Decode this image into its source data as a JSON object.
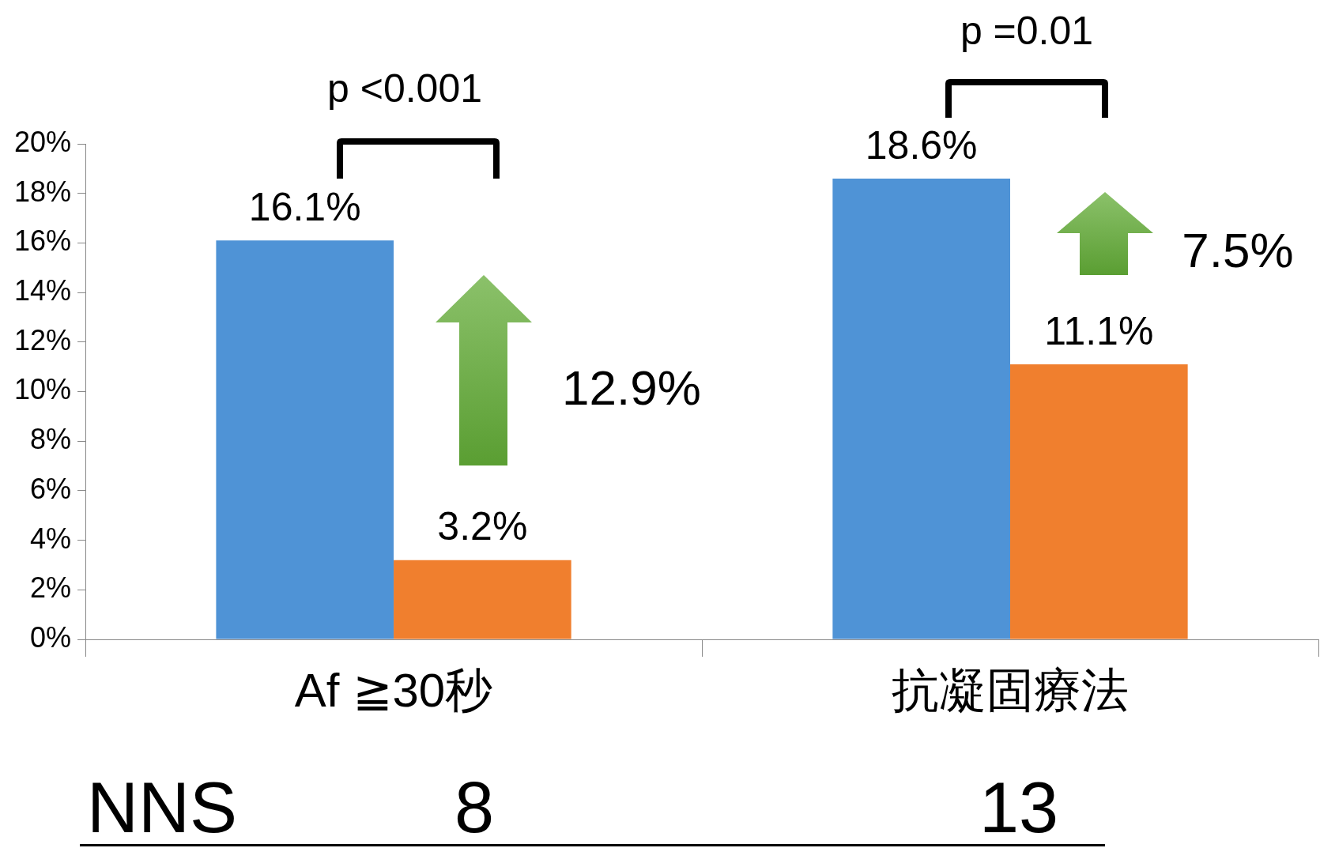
{
  "chart_data": {
    "type": "bar",
    "categories": [
      "Af ≧30秒",
      "抗凝固療法"
    ],
    "series": [
      {
        "color": "#4f93d6",
        "values": [
          16.1,
          18.6
        ]
      },
      {
        "color": "#f07f2e",
        "values": [
          3.2,
          11.1
        ]
      }
    ],
    "ylim": [
      0,
      20
    ],
    "yticks": [
      {
        "value": 0,
        "label": "0%"
      },
      {
        "value": 2,
        "label": "2%"
      },
      {
        "value": 4,
        "label": "4%"
      },
      {
        "value": 6,
        "label": "6%"
      },
      {
        "value": 8,
        "label": "8%"
      },
      {
        "value": 10,
        "label": "10%"
      },
      {
        "value": 12,
        "label": "12%"
      },
      {
        "value": 14,
        "label": "14%"
      },
      {
        "value": 16,
        "label": "16%"
      },
      {
        "value": 18,
        "label": "18%"
      },
      {
        "value": 20,
        "label": "20%"
      }
    ],
    "value_labels": [
      [
        "16.1%",
        "18.6%"
      ],
      [
        "3.2%",
        "11.1%"
      ]
    ],
    "grid": false,
    "legend": false,
    "annotations": [
      "p <0.001",
      "p =0.01",
      "12.9%",
      "7.5%",
      "NNS",
      "8",
      "13"
    ]
  }
}
